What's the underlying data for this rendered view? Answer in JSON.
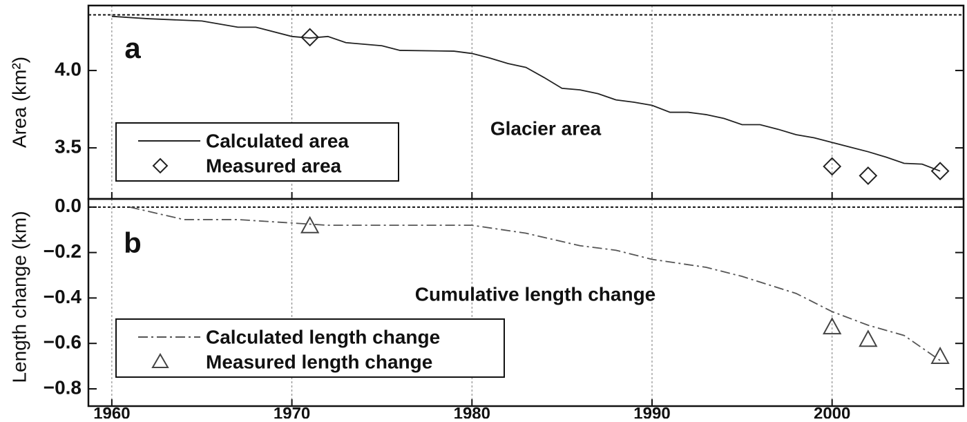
{
  "chart_data": [
    {
      "type": "line",
      "panel_label": "a",
      "annotation": "Glacier area",
      "ylabel": "Area (km²)",
      "xlim": [
        1958.7,
        2007.3
      ],
      "ylim": [
        3.17,
        4.42
      ],
      "yticks": [
        {
          "value": 4,
          "label": "4.0"
        },
        3.5
      ],
      "ref_line": 4.36,
      "legend": "lower left",
      "grid": true,
      "series": [
        {
          "name": "Calculated area",
          "color": "#222222",
          "style": "solid",
          "x": [
            1960,
            1962,
            1965,
            1967,
            1968,
            1970,
            1971,
            1972,
            1973,
            1975,
            1976,
            1979,
            1980,
            1981,
            1982,
            1983,
            1984,
            1985,
            1986,
            1987,
            1988,
            1989,
            1990,
            1991,
            1992,
            1993,
            1994,
            1995,
            1996,
            1997,
            1998,
            1999,
            2000,
            2001,
            2002,
            2003,
            2004,
            2005,
            2006
          ],
          "values": [
            4.35,
            4.335,
            4.32,
            4.28,
            4.28,
            4.22,
            4.21,
            4.22,
            4.18,
            4.16,
            4.13,
            4.125,
            4.11,
            4.08,
            4.045,
            4.02,
            3.955,
            3.885,
            3.875,
            3.85,
            3.81,
            3.795,
            3.775,
            3.73,
            3.73,
            3.715,
            3.69,
            3.65,
            3.65,
            3.62,
            3.585,
            3.565,
            3.535,
            3.505,
            3.475,
            3.44,
            3.4,
            3.395,
            3.35
          ]
        },
        {
          "name": "Measured area",
          "color": "#222222",
          "marker": "diamond",
          "x": [
            1971,
            2000,
            2002,
            2006
          ],
          "values": [
            4.215,
            3.38,
            3.32,
            3.35
          ]
        }
      ]
    },
    {
      "type": "line",
      "panel_label": "b",
      "annotation": "Cumulative length change",
      "ylabel": "Length change (km)",
      "xlim": [
        1958.7,
        2007.3
      ],
      "ylim": [
        -0.876,
        0.036
      ],
      "xticks": [
        1960,
        1970,
        1980,
        1990,
        2000
      ],
      "yticks": [
        {
          "value": 0,
          "label": "0.0"
        },
        {
          "value": -0.2,
          "label": "−0.2"
        },
        {
          "value": -0.4,
          "label": "−0.4"
        },
        {
          "value": -0.6,
          "label": "−0.6"
        },
        {
          "value": -0.8,
          "label": "−0.8"
        }
      ],
      "ref_line": 0,
      "legend": "lower left",
      "grid": true,
      "series": [
        {
          "name": "Calculated length change",
          "color": "#555555",
          "style": "dashdot",
          "x": [
            1961,
            1964,
            1967,
            1970,
            1972,
            1980,
            1983,
            1986,
            1988,
            1990,
            1993,
            1995,
            1998,
            2000,
            2002,
            2004,
            2006
          ],
          "values": [
            0,
            -0.055,
            -0.055,
            -0.07,
            -0.08,
            -0.08,
            -0.115,
            -0.17,
            -0.19,
            -0.23,
            -0.265,
            -0.305,
            -0.38,
            -0.46,
            -0.52,
            -0.565,
            -0.675
          ]
        },
        {
          "name": "Measured length change",
          "color": "#444444",
          "marker": "triangle",
          "x": [
            1971,
            2000,
            2002,
            2006
          ],
          "values": [
            -0.085,
            -0.53,
            -0.585,
            -0.66
          ]
        }
      ]
    }
  ]
}
